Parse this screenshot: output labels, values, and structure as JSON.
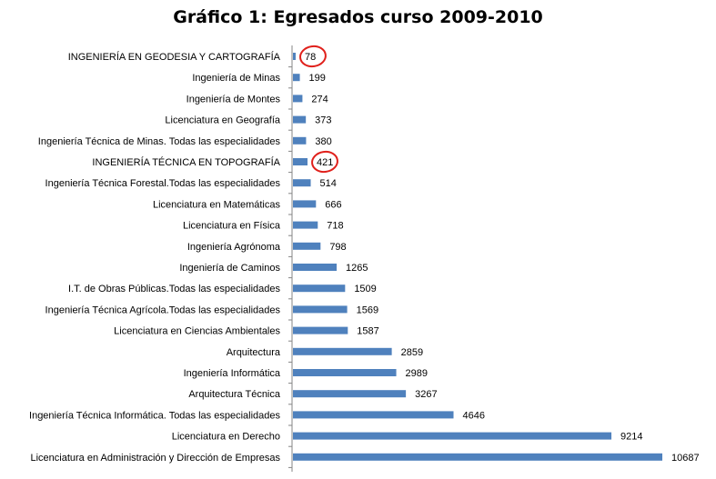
{
  "chart_data": {
    "type": "bar",
    "orientation": "horizontal",
    "title": "Gráfico 1: Egresados curso 2009-2010",
    "xlabel": "",
    "ylabel": "",
    "xlim": [
      0,
      10687
    ],
    "grid": false,
    "legend": "none",
    "bar_color": "#4f81bd",
    "highlight_color": "#e0201b",
    "highlighted_categories": [
      "INGENIERÍA  EN GEODESIA  Y CARTOGRAFÍA",
      "INGENIERÍA  TÉCNICA  EN TOPOGRAFÍA"
    ],
    "categories": [
      "INGENIERÍA  EN GEODESIA  Y CARTOGRAFÍA",
      "Ingeniería de Minas",
      "Ingeniería de Montes",
      "Licenciatura en Geografía",
      "Ingeniería Técnica de Minas. Todas las especialidades",
      "INGENIERÍA  TÉCNICA  EN TOPOGRAFÍA",
      "Ingeniería Técnica Forestal.Todas las especialidades",
      "Licenciatura en Matemáticas",
      "Licenciatura  en Física",
      "Ingeniería Agrónoma",
      "Ingeniería de Caminos",
      "I.T. de Obras Públicas.Todas las especialidades",
      "Ingeniería Técnica Agrícola.Todas las especialidades",
      "Licenciatura  en Ciencias Ambientales",
      "Arquitectura",
      "Ingeniería Informática",
      "Arquitectura Técnica",
      "Ingeniería Técnica Informática.  Todas las especialidades",
      "Licenciatura  en Derecho",
      "Licenciatura en Administración y Dirección de Empresas"
    ],
    "values": [
      78,
      199,
      274,
      373,
      380,
      421,
      514,
      666,
      718,
      798,
      1265,
      1509,
      1569,
      1587,
      2859,
      2989,
      3267,
      4646,
      9214,
      10687
    ]
  }
}
